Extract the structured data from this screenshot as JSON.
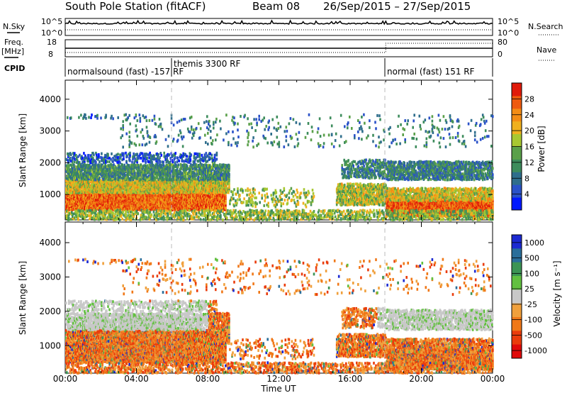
{
  "header": {
    "station": "South Pole Station (fitACF)",
    "beam": "Beam 08",
    "date_range": "26/Sep/2015 – 27/Sep/2015"
  },
  "summary_panels": {
    "left_labels": {
      "nsky": "N.Sky",
      "freq": "Freq.",
      "mhz": "[MHz]",
      "cpid": "CPID"
    },
    "right_labels": {
      "nsearch": "N.Search",
      "nave": "Nave"
    },
    "nsky_ticks": [
      "10^5",
      "10^0"
    ],
    "nsearch_ticks": [
      "10^5",
      "10^0"
    ],
    "freq_ticks": [
      "18",
      "8"
    ],
    "nave_ticks": [
      "80",
      "0"
    ],
    "cpid_segments": [
      {
        "label": "normalsound (fast) -157 RF",
        "start_hour": 0
      },
      {
        "label": "themis 3300 RF",
        "start_hour": 6
      },
      {
        "label": "normal (fast) 151 RF",
        "start_hour": 18
      }
    ]
  },
  "chart_data": [
    {
      "type": "heatmap",
      "name": "power",
      "ylabel": "Slant Range [km]",
      "xlabel": "Time UT",
      "x_ticks": [
        "00:00",
        "04:00",
        "08:00",
        "12:00",
        "16:00",
        "20:00",
        "00:00"
      ],
      "x_range_hours": [
        0,
        24
      ],
      "y_ticks": [
        1000,
        2000,
        3000,
        4000
      ],
      "y_range_km": [
        200,
        4600
      ],
      "colorbar": {
        "label": "Power [dB]",
        "ticks": [
          4,
          8,
          12,
          16,
          20,
          24,
          28
        ],
        "range": [
          0,
          32
        ],
        "colors": [
          "#0018ff",
          "#2a52c8",
          "#2f6e8c",
          "#3d8c5c",
          "#5aa04a",
          "#a8c832",
          "#f0b01e",
          "#f48c14",
          "#ee5a0e",
          "#e01a0a"
        ]
      }
    },
    {
      "type": "heatmap",
      "name": "velocity",
      "ylabel": "Slant Range [km]",
      "xlabel": "Time UT",
      "x_ticks": [
        "00:00",
        "04:00",
        "08:00",
        "12:00",
        "16:00",
        "20:00",
        "00:00"
      ],
      "x_range_hours": [
        0,
        24
      ],
      "y_ticks": [
        1000,
        2000,
        3000,
        4000
      ],
      "y_range_km": [
        200,
        4600
      ],
      "colorbar": {
        "label": "Velocity [m s⁻¹]",
        "ticks": [
          "1000",
          "500",
          "100",
          "25",
          "-25",
          "-100",
          "-500",
          "-1000"
        ],
        "colors": [
          "#1c2ad2",
          "#2a6e9a",
          "#3c9454",
          "#62c040",
          "#c8c8c8",
          "#f0a03c",
          "#f07818",
          "#ea3c0c",
          "#e00a0a"
        ]
      }
    }
  ]
}
